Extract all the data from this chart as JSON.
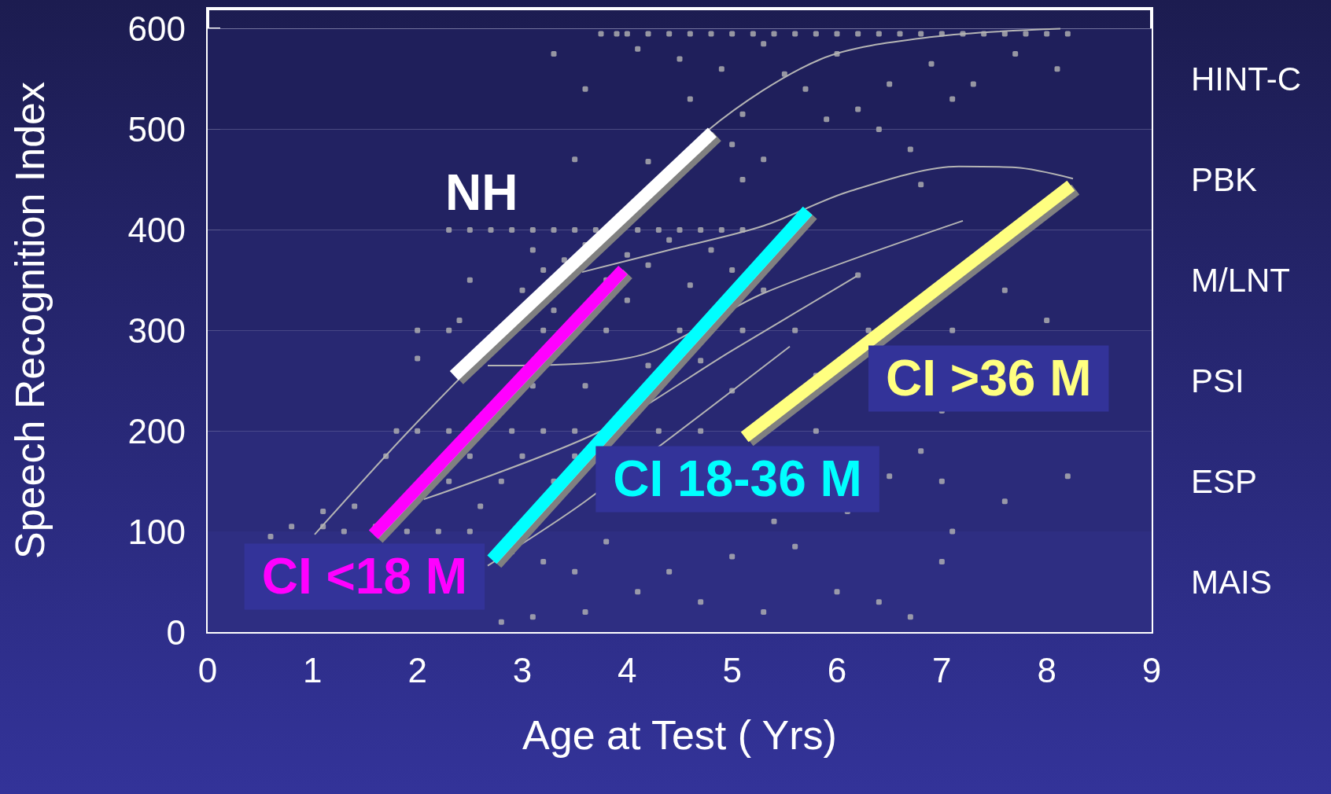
{
  "chart_data": {
    "type": "scatter",
    "xlabel": "Age at Test ( Yrs)",
    "ylabel": "Speech Recognition Index",
    "xlim": [
      0,
      9
    ],
    "xticks": [
      0,
      1,
      2,
      3,
      4,
      5,
      6,
      7,
      8,
      9
    ],
    "ylim": [
      0,
      620
    ],
    "yticks": [
      0,
      100,
      200,
      300,
      400,
      500,
      600
    ],
    "grid": "y",
    "legend": false,
    "bands": [
      {
        "axis": "y",
        "from": 500,
        "to": 600,
        "label": "HINT-C",
        "color": "#1f1f5b"
      },
      {
        "axis": "y",
        "from": 400,
        "to": 500,
        "label": "PBK",
        "color": "#222262"
      },
      {
        "axis": "y",
        "from": 300,
        "to": 400,
        "label": "M/LNT",
        "color": "#25256a"
      },
      {
        "axis": "y",
        "from": 200,
        "to": 300,
        "label": "PSI",
        "color": "#282872"
      },
      {
        "axis": "y",
        "from": 100,
        "to": 200,
        "label": "ESP",
        "color": "#2b2b7a"
      },
      {
        "axis": "y",
        "from": 0,
        "to": 100,
        "label": "MAIS",
        "color": "#2e2e82"
      }
    ],
    "series": [
      {
        "color": "#b4b4b4",
        "marker": "square",
        "x": [
          3.75,
          3.9,
          4.0,
          4.2,
          4.4,
          4.6,
          4.8,
          5.0,
          5.2,
          5.4,
          5.6,
          5.8,
          6.0,
          6.2,
          6.4,
          6.6,
          6.8,
          7.0,
          7.2,
          7.4,
          7.6,
          7.8,
          8.0,
          8.2,
          3.3,
          3.6,
          4.1,
          4.5,
          4.9,
          5.3,
          5.5,
          5.7,
          6.0,
          6.2,
          6.5,
          6.9,
          7.1,
          7.3,
          7.7,
          8.1,
          5.1,
          5.9,
          6.4,
          4.6,
          3.5,
          4.2,
          5.0,
          5.3,
          6.7,
          5.1,
          6.8,
          2.3,
          2.5,
          2.7,
          2.9,
          3.1,
          3.3,
          3.5,
          3.7,
          3.9,
          4.1,
          4.3,
          4.5,
          4.7,
          4.9,
          5.1,
          3.1,
          3.2,
          3.4,
          3.6,
          3.8,
          4.0,
          4.2,
          4.4,
          4.6,
          4.8,
          5.0,
          3.0,
          3.3,
          2.5,
          2.4,
          5.3,
          6.2,
          7.6,
          8.0,
          4.0,
          2.0,
          2.3,
          3.2,
          3.8,
          4.5,
          5.1,
          5.6,
          6.3,
          7.1,
          2.0,
          3.1,
          3.6,
          4.2,
          4.7,
          5.0,
          5.8,
          7.0,
          1.8,
          2.0,
          2.3,
          2.6,
          2.9,
          3.2,
          3.5,
          3.9,
          4.3,
          4.7,
          5.8,
          1.7,
          2.5,
          3.0,
          3.5,
          2.3,
          2.8,
          3.3,
          1.4,
          1.9,
          2.6,
          0.8,
          1.1,
          1.3,
          1.6,
          1.9,
          2.2,
          2.5,
          0.6,
          1.1,
          2.9,
          3.2,
          3.5,
          3.8,
          4.1,
          4.4,
          4.7,
          5.0,
          5.3,
          5.6,
          6.0,
          6.4,
          6.7,
          2.8,
          3.1,
          3.6,
          5.4,
          6.1,
          7.0,
          7.1,
          8.2,
          7.6,
          7.0,
          6.5,
          6.8
        ],
        "values": [
          595,
          595,
          595,
          595,
          595,
          595,
          595,
          595,
          595,
          595,
          595,
          595,
          595,
          595,
          595,
          595,
          595,
          595,
          595,
          595,
          595,
          595,
          595,
          595,
          575,
          540,
          580,
          570,
          560,
          585,
          555,
          540,
          575,
          520,
          545,
          565,
          530,
          545,
          575,
          560,
          515,
          510,
          500,
          530,
          470,
          468,
          485,
          470,
          480,
          450,
          445,
          400,
          400,
          400,
          400,
          400,
          400,
          400,
          400,
          400,
          400,
          400,
          400,
          400,
          400,
          400,
          380,
          360,
          370,
          385,
          350,
          375,
          365,
          390,
          345,
          380,
          360,
          340,
          320,
          350,
          310,
          340,
          355,
          340,
          310,
          330,
          300,
          300,
          300,
          300,
          300,
          300,
          300,
          300,
          300,
          272,
          245,
          245,
          265,
          270,
          240,
          255,
          220,
          200,
          200,
          200,
          200,
          200,
          200,
          200,
          200,
          200,
          200,
          200,
          175,
          175,
          175,
          175,
          150,
          150,
          150,
          125,
          125,
          125,
          105,
          105,
          100,
          105,
          100,
          100,
          100,
          95,
          120,
          80,
          70,
          60,
          90,
          40,
          60,
          30,
          75,
          20,
          85,
          40,
          30,
          15,
          10,
          15,
          20,
          110,
          120,
          70,
          100,
          155,
          130,
          150,
          155,
          180
        ]
      },
      {
        "type": "line",
        "color": "#b4b4b4",
        "x": [
          1.02,
          1.9,
          2.82,
          3.68,
          4.77,
          5.85,
          6.92,
          8.13
        ],
        "values": [
          97,
          198,
          296,
          383,
          499,
          570,
          592,
          600
        ]
      },
      {
        "type": "line",
        "color": "#b4b4b4",
        "x": [
          3.57,
          4.4,
          5.3,
          6.11,
          7.16,
          7.7,
          8.25
        ],
        "values": [
          358,
          380,
          404,
          438,
          463,
          462,
          451
        ]
      },
      {
        "type": "line",
        "color": "#b4b4b4",
        "x": [
          2.67,
          3.57,
          4.24,
          5.3,
          7.2
        ],
        "values": [
          265,
          267,
          279,
          337,
          409
        ]
      },
      {
        "type": "line",
        "color": "#b4b4b4",
        "x": [
          2.06,
          3.71,
          5.0,
          6.19
        ],
        "values": [
          132,
          198,
          280,
          354
        ]
      },
      {
        "type": "line",
        "color": "#b4b4b4",
        "x": [
          2.67,
          3.6,
          5.55
        ],
        "values": [
          66,
          130,
          284
        ]
      },
      {
        "type": "line",
        "name": "NH",
        "color": "#ffffff",
        "x": [
          2.35,
          4.81
        ],
        "values": [
          255,
          497
        ]
      },
      {
        "type": "line",
        "name": "CI <18 M",
        "color": "#ff00ff",
        "x": [
          1.58,
          3.96
        ],
        "values": [
          97,
          360
        ]
      },
      {
        "type": "line",
        "name": "CI 18-36 M",
        "color": "#00ffff",
        "x": [
          2.71,
          5.72
        ],
        "values": [
          72,
          419
        ]
      },
      {
        "type": "line",
        "name": "CI >36 M",
        "color": "#ffff80",
        "x": [
          5.12,
          8.23
        ],
        "values": [
          194,
          444
        ]
      }
    ]
  }
}
